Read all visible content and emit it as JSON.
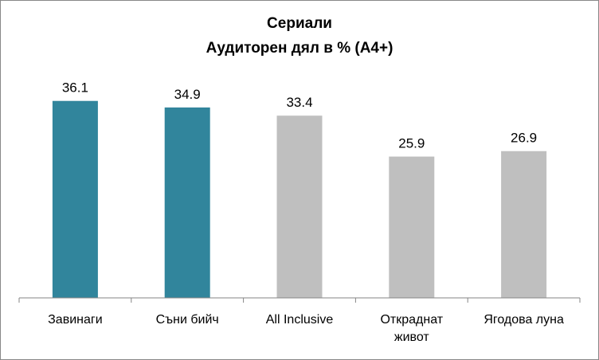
{
  "chart_data": {
    "type": "bar",
    "title": "Сериали",
    "subtitle": "Аудиторен дял в % (А4+)",
    "categories": [
      "Завинаги",
      "Съни бийч",
      "All Inclusive",
      "Откраднат живот",
      "Ягодова луна"
    ],
    "category_lines": [
      [
        "Завинаги"
      ],
      [
        "Съни бийч"
      ],
      [
        "All Inclusive"
      ],
      [
        "Откраднат",
        "живот"
      ],
      [
        "Ягодова луна"
      ]
    ],
    "values": [
      36.1,
      34.9,
      33.4,
      25.9,
      26.9
    ],
    "data_labels": [
      "36.1",
      "34.9",
      "33.4",
      "25.9",
      "26.9"
    ],
    "bar_colors": [
      "#31859c",
      "#31859c",
      "#bfbfbf",
      "#bfbfbf",
      "#bfbfbf"
    ],
    "xlabel": "",
    "ylabel": "",
    "ylim": [
      0,
      40
    ],
    "grid": false,
    "legend": "none"
  }
}
